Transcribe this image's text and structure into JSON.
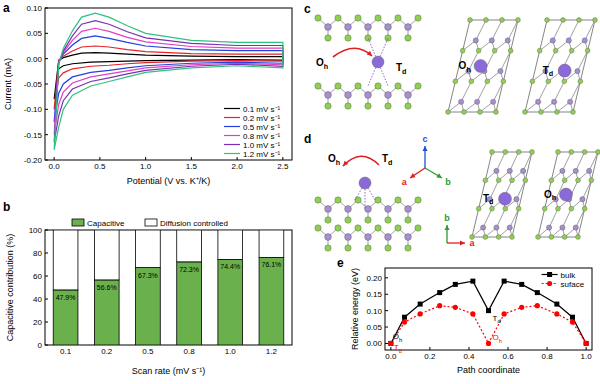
{
  "chart_data": [
    {
      "type": "line",
      "title": "a",
      "x_label": "Potential (V vs. K⁺/K)",
      "y_label": "Current (mA)",
      "x": [
        0,
        0.05,
        0.1,
        0.2,
        0.3,
        0.45,
        0.6,
        0.8,
        1.0,
        1.5,
        2.0,
        2.5,
        2.5,
        2.0,
        1.5,
        1.0,
        0.8,
        0.6,
        0.4,
        0.2,
        0.1,
        0.05,
        0
      ],
      "series": [
        {
          "name": "0.1 mV s⁻¹",
          "color": "#000000",
          "values": [
            -0.08,
            -0.003,
            0.002,
            0.007,
            0.011,
            0.012,
            0.011,
            0.009,
            0.007,
            0.005,
            0.004,
            0.004,
            -0.003,
            -0.002,
            -0.003,
            -0.004,
            -0.005,
            -0.006,
            -0.007,
            -0.01,
            -0.014,
            -0.02,
            -0.08
          ]
        },
        {
          "name": "0.2 mV s⁻¹",
          "color": "#e8202a",
          "values": [
            -0.1,
            -0.004,
            0.005,
            0.015,
            0.023,
            0.025,
            0.023,
            0.018,
            0.014,
            0.01,
            0.009,
            0.009,
            -0.005,
            -0.004,
            -0.005,
            -0.008,
            -0.01,
            -0.013,
            -0.015,
            -0.02,
            -0.028,
            -0.038,
            -0.1
          ]
        },
        {
          "name": "0.5 mV s⁻¹",
          "color": "#2040e0",
          "values": [
            -0.125,
            -0.006,
            0.009,
            0.027,
            0.04,
            0.045,
            0.04,
            0.032,
            0.025,
            0.018,
            0.016,
            0.016,
            -0.009,
            -0.007,
            -0.009,
            -0.014,
            -0.018,
            -0.023,
            -0.027,
            -0.036,
            -0.05,
            -0.068,
            -0.125
          ]
        },
        {
          "name": "0.8 mV s⁻¹",
          "color": "#e040c0",
          "values": [
            -0.15,
            -0.008,
            0.012,
            0.036,
            0.054,
            0.06,
            0.054,
            0.042,
            0.033,
            0.024,
            0.021,
            0.021,
            -0.012,
            -0.009,
            -0.012,
            -0.018,
            -0.024,
            -0.03,
            -0.036,
            -0.048,
            -0.066,
            -0.09,
            -0.15
          ]
        },
        {
          "name": "1.0 mV s⁻¹",
          "color": "#7a2fb5",
          "values": [
            -0.165,
            -0.01,
            0.015,
            0.045,
            0.068,
            0.075,
            0.068,
            0.053,
            0.041,
            0.03,
            0.026,
            0.026,
            -0.015,
            -0.011,
            -0.015,
            -0.023,
            -0.03,
            -0.038,
            -0.045,
            -0.06,
            -0.083,
            -0.113,
            -0.165
          ]
        },
        {
          "name": "1.2 mV s⁻¹",
          "color": "#2ec27e",
          "values": [
            -0.18,
            -0.01,
            0.02,
            0.055,
            0.082,
            0.09,
            0.082,
            0.065,
            0.05,
            0.036,
            0.032,
            0.032,
            -0.018,
            -0.014,
            -0.018,
            -0.027,
            -0.036,
            -0.045,
            -0.054,
            -0.072,
            -0.1,
            -0.135,
            -0.18
          ]
        }
      ],
      "xlim": [
        -0.1,
        2.6
      ],
      "ylim": [
        -0.2,
        0.1
      ],
      "xticks": [
        {
          "value": 0,
          "label": "0.0"
        },
        0.5,
        {
          "value": 1,
          "label": "1.0"
        },
        1.5,
        {
          "value": 2,
          "label": "2.0"
        },
        2.5
      ],
      "yticks": [
        {
          "value": -0.2,
          "label": "-0.20"
        },
        {
          "value": -0.15,
          "label": "-0.15"
        },
        {
          "value": -0.1,
          "label": "-0.10"
        },
        {
          "value": -0.05,
          "label": "-0.05"
        },
        {
          "value": 0,
          "label": "0.00"
        },
        {
          "value": 0.05,
          "label": "0.05"
        },
        {
          "value": 0.1,
          "label": "0.10"
        }
      ],
      "legend": "lower right"
    },
    {
      "type": "bar",
      "title": "b",
      "stacked": true,
      "data_labels": true,
      "legend": "top",
      "x_label": "Scan rate (mV s⁻¹)",
      "y_label": "Capacitive contribution (%)",
      "categories": [
        "0.1",
        "0.2",
        "0.5",
        "0.8",
        "1.0",
        "1.2"
      ],
      "series": [
        {
          "name": "Capacitive",
          "color": "#6ab04c",
          "values": [
            47.9,
            56.6,
            67.3,
            72.3,
            74.4,
            76.1
          ],
          "value_labels": [
            "47.9%",
            "56.6%",
            "67.3%",
            "72.3%",
            "74.4%",
            "76.1%"
          ]
        },
        {
          "name": "Diffusion controlled",
          "color": "#ffffff",
          "values": [
            52.1,
            43.4,
            32.7,
            27.7,
            25.6,
            23.9
          ]
        }
      ],
      "ylim": [
        0,
        100
      ],
      "yticks": [
        0,
        20,
        40,
        60,
        80,
        100
      ]
    },
    {
      "type": "line",
      "title": "e",
      "x_label": "Path coordinate",
      "y_label": "Relative energy (eV)",
      "x": [
        0,
        0.07,
        0.15,
        0.25,
        0.33,
        0.42,
        0.5,
        0.58,
        0.67,
        0.75,
        0.85,
        0.93,
        1.0
      ],
      "series": [
        {
          "name": "bulk",
          "color": "#000000",
          "marker": "square",
          "line_style": "solid",
          "values": [
            0,
            0.08,
            0.12,
            0.155,
            0.18,
            0.19,
            0.1,
            0.19,
            0.18,
            0.155,
            0.12,
            0.08,
            0
          ]
        },
        {
          "name": "suface",
          "color": "#ff0000",
          "marker": "circle",
          "line_style": "dotted",
          "values": [
            0,
            0.065,
            0.09,
            0.115,
            0.11,
            0.09,
            0,
            0.09,
            0.11,
            0.115,
            0.09,
            0.065,
            0
          ]
        }
      ],
      "xlim": [
        -0.03,
        1.03
      ],
      "ylim": [
        -0.02,
        0.23
      ],
      "xticks": [
        {
          "value": 0,
          "label": "0.0"
        },
        0.2,
        0.4,
        0.6,
        0.8,
        {
          "value": 1,
          "label": "1.0"
        }
      ],
      "yticks": [
        {
          "value": 0,
          "label": "0.00"
        },
        {
          "value": 0.05,
          "label": "0.05"
        },
        {
          "value": 0.1,
          "label": "0.10"
        },
        {
          "value": 0.15,
          "label": "0.15"
        },
        {
          "value": 0.2,
          "label": "0.20"
        }
      ],
      "legend": "upper right",
      "annotations": [
        {
          "text": "Oh",
          "x": 0,
          "y": 0,
          "color": "#000000"
        },
        {
          "text": "Td",
          "x": 0,
          "y": 0,
          "color": "#ff0000"
        },
        {
          "text": "Td",
          "x": 0.5,
          "y": 0.1,
          "color": "#000000"
        },
        {
          "text": "Oh",
          "x": 0.5,
          "y": 0,
          "color": "#ff0000"
        }
      ]
    }
  ],
  "diagrams": [
    {
      "title": "c",
      "side_view": {
        "labels": [
          "Oh",
          "Td"
        ],
        "arrow": "right"
      },
      "top_views": [
        "Oh",
        "Td"
      ]
    },
    {
      "title": "d",
      "side_view": {
        "labels": [
          "Oh",
          "Td"
        ],
        "arrow": "left"
      },
      "axes": [
        "a",
        "b",
        "c"
      ],
      "top_axes": [
        "b",
        "a"
      ],
      "top_views": [
        "Td",
        "Oh"
      ]
    }
  ]
}
